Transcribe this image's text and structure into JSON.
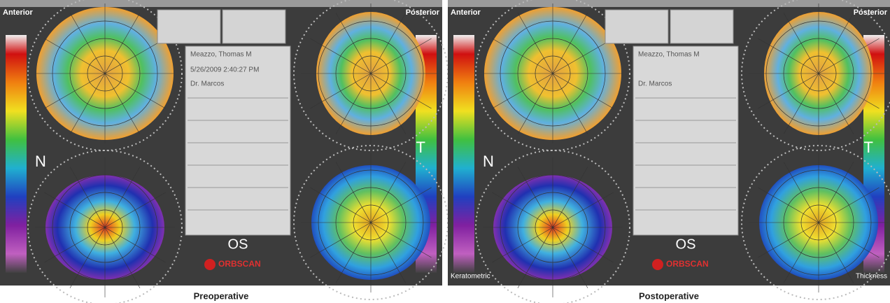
{
  "panels": [
    {
      "caption": "Preoperative",
      "anterior": "Anterior",
      "posterior": "Posterior",
      "nasal": "N",
      "temporal": "T",
      "eye": "OS",
      "brand": "ORBSCAN",
      "patient": "Meazzo, Thomas M",
      "date": "5/26/2009 2:40:27 PM",
      "doctor": "Dr. Marcos"
    },
    {
      "caption": "Postoperative",
      "anterior": "Anterior",
      "posterior": "Posterior",
      "nasal": "N",
      "temporal": "T",
      "eye": "OS",
      "brand": "ORBSCAN",
      "patient": "Meazzo, Thomas M",
      "doctor": "Dr. Marcos",
      "bottom_left": "Keratometric",
      "bottom_right": "Thickness"
    }
  ]
}
